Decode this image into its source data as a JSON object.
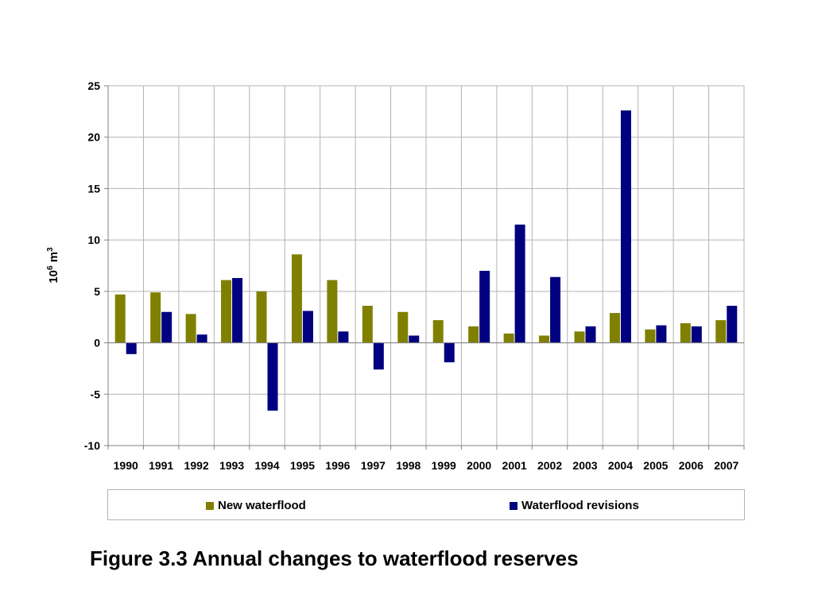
{
  "chart_data": {
    "type": "bar",
    "categories": [
      "1990",
      "1991",
      "1992",
      "1993",
      "1994",
      "1995",
      "1996",
      "1997",
      "1998",
      "1999",
      "2000",
      "2001",
      "2002",
      "2003",
      "2004",
      "2005",
      "2006",
      "2007"
    ],
    "series": [
      {
        "name": "New waterflood",
        "color": "#808000",
        "values": [
          4.7,
          4.9,
          2.8,
          6.1,
          5.0,
          8.6,
          6.1,
          3.6,
          3.0,
          2.2,
          1.6,
          0.9,
          0.7,
          1.1,
          2.9,
          1.3,
          1.9,
          2.2
        ]
      },
      {
        "name": "Waterflood revisions",
        "color": "#000080",
        "values": [
          -1.1,
          3.0,
          0.8,
          6.3,
          -6.6,
          3.1,
          1.1,
          -2.6,
          0.7,
          -1.9,
          7.0,
          11.5,
          6.4,
          1.6,
          22.6,
          1.7,
          1.6,
          3.6
        ]
      }
    ],
    "title": "",
    "xlabel": "",
    "ylabel_base": "10",
    "ylabel_exp": "6",
    "ylabel_unit": " m",
    "ylabel_unit_exp": "3",
    "ylim": [
      -10,
      25
    ],
    "yticks": [
      25,
      20,
      15,
      10,
      5,
      0,
      -5,
      -10
    ],
    "grid": true,
    "legend_position": "bottom"
  },
  "caption": "Figure 3.3 Annual changes to waterflood reserves"
}
